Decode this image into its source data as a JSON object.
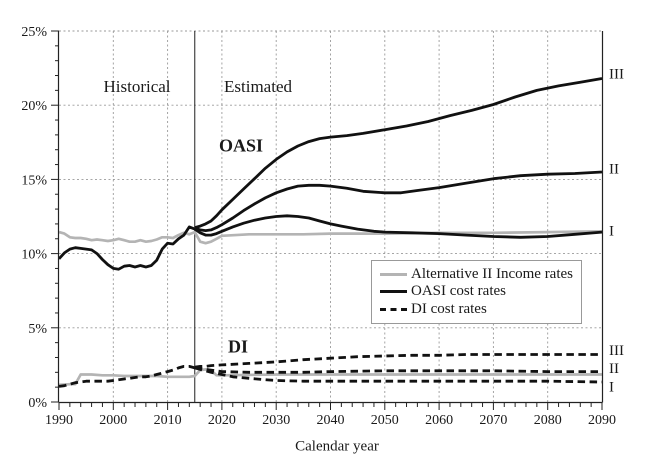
{
  "chart_data": {
    "type": "line",
    "title": "",
    "xlabel": "Calendar year",
    "ylabel": "",
    "xlim": [
      1990,
      2090
    ],
    "ylim": [
      0,
      25
    ],
    "x_major_ticks": [
      1990,
      2000,
      2010,
      2020,
      2030,
      2040,
      2050,
      2060,
      2070,
      2080,
      2090
    ],
    "x_minor_step": 2,
    "y_major_ticks": [
      0,
      5,
      10,
      15,
      20,
      25
    ],
    "y_minor_step": 1,
    "y_tick_suffix": "%",
    "grid": {
      "style": "dashed",
      "color": "#9a9a9a",
      "horizontal_at": [
        5,
        10,
        15,
        20,
        25
      ],
      "vertical_at": [
        2000,
        2010,
        2020,
        2030,
        2040,
        2050,
        2060,
        2070,
        2080
      ]
    },
    "divider": {
      "year": 2015
    },
    "annotations": [
      {
        "text": "Historical"
      },
      {
        "text": "Estimated"
      },
      {
        "text": "OASI"
      },
      {
        "text": "DI"
      }
    ],
    "legend": {
      "position": "lower-right",
      "entries": [
        {
          "label": "Alternative II Income rates",
          "style": "gray-solid"
        },
        {
          "label": "OASI cost rates",
          "style": "black-solid"
        },
        {
          "label": "DI cost rates",
          "style": "black-dashed"
        }
      ]
    },
    "right_labels": [
      {
        "id": "oasi-III",
        "text": "III",
        "value": 22.15
      },
      {
        "id": "oasi-II",
        "text": "II",
        "value": 15.75
      },
      {
        "id": "oasi-I",
        "text": "I",
        "value": 11.55
      },
      {
        "id": "di-III",
        "text": "III",
        "value": 3.5
      },
      {
        "id": "di-II",
        "text": "II",
        "value": 2.3
      },
      {
        "id": "di-I",
        "text": "I",
        "value": 1.05
      }
    ],
    "series": [
      {
        "id": "alt2-income-oasi",
        "name": "Alternative II Income rates (OASI)",
        "color": "#b4b4b4",
        "width": 2.7,
        "dash": null,
        "points": [
          [
            1990,
            11.45
          ],
          [
            1991,
            11.35
          ],
          [
            1992,
            11.1
          ],
          [
            1993,
            11.05
          ],
          [
            1994,
            11.05
          ],
          [
            1995,
            11.0
          ],
          [
            1996,
            10.9
          ],
          [
            1997,
            10.95
          ],
          [
            1998,
            10.9
          ],
          [
            1999,
            10.85
          ],
          [
            2000,
            10.9
          ],
          [
            2001,
            11.0
          ],
          [
            2002,
            10.9
          ],
          [
            2003,
            10.8
          ],
          [
            2004,
            10.8
          ],
          [
            2005,
            10.9
          ],
          [
            2006,
            10.8
          ],
          [
            2007,
            10.85
          ],
          [
            2008,
            10.95
          ],
          [
            2009,
            11.1
          ],
          [
            2010,
            11.1
          ],
          [
            2011,
            11.05
          ],
          [
            2012,
            11.25
          ],
          [
            2013,
            11.4
          ],
          [
            2014,
            11.3
          ],
          [
            2015,
            11.45
          ],
          [
            2016,
            10.8
          ],
          [
            2017,
            10.7
          ],
          [
            2018,
            10.8
          ],
          [
            2019,
            11.0
          ],
          [
            2020,
            11.2
          ],
          [
            2025,
            11.3
          ],
          [
            2030,
            11.3
          ],
          [
            2035,
            11.3
          ],
          [
            2040,
            11.35
          ],
          [
            2050,
            11.35
          ],
          [
            2060,
            11.4
          ],
          [
            2070,
            11.4
          ],
          [
            2080,
            11.45
          ],
          [
            2090,
            11.5
          ]
        ]
      },
      {
        "id": "alt2-income-di",
        "name": "Alternative II Income rates (DI)",
        "color": "#b4b4b4",
        "width": 2.7,
        "dash": null,
        "points": [
          [
            1990,
            1.15
          ],
          [
            1992,
            1.2
          ],
          [
            1993,
            1.2
          ],
          [
            1994,
            1.85
          ],
          [
            1996,
            1.85
          ],
          [
            1998,
            1.8
          ],
          [
            2000,
            1.8
          ],
          [
            2002,
            1.75
          ],
          [
            2004,
            1.75
          ],
          [
            2006,
            1.75
          ],
          [
            2008,
            1.75
          ],
          [
            2010,
            1.7
          ],
          [
            2012,
            1.7
          ],
          [
            2014,
            1.7
          ],
          [
            2015,
            1.75
          ],
          [
            2016,
            2.15
          ],
          [
            2017,
            2.2
          ],
          [
            2018,
            2.15
          ],
          [
            2019,
            1.8
          ],
          [
            2020,
            1.8
          ],
          [
            2030,
            1.85
          ],
          [
            2040,
            1.85
          ],
          [
            2050,
            1.85
          ],
          [
            2060,
            1.85
          ],
          [
            2070,
            1.85
          ],
          [
            2080,
            1.85
          ],
          [
            2090,
            1.85
          ]
        ]
      },
      {
        "id": "oasi-cost-historical",
        "name": "OASI cost rates (historical)",
        "color": "#111111",
        "width": 2.8,
        "dash": null,
        "points": [
          [
            1990,
            9.65
          ],
          [
            1991,
            10.05
          ],
          [
            1992,
            10.3
          ],
          [
            1993,
            10.4
          ],
          [
            1994,
            10.35
          ],
          [
            1995,
            10.3
          ],
          [
            1996,
            10.25
          ],
          [
            1997,
            10.0
          ],
          [
            1998,
            9.6
          ],
          [
            1999,
            9.25
          ],
          [
            2000,
            9.0
          ],
          [
            2001,
            8.95
          ],
          [
            2002,
            9.15
          ],
          [
            2003,
            9.2
          ],
          [
            2004,
            9.1
          ],
          [
            2005,
            9.2
          ],
          [
            2006,
            9.1
          ],
          [
            2007,
            9.2
          ],
          [
            2008,
            9.55
          ],
          [
            2009,
            10.3
          ],
          [
            2010,
            10.7
          ],
          [
            2011,
            10.65
          ],
          [
            2012,
            11.0
          ],
          [
            2013,
            11.25
          ],
          [
            2014,
            11.8
          ],
          [
            2015,
            11.65
          ]
        ]
      },
      {
        "id": "oasi-cost-I",
        "name": "OASI cost rates (alt I)",
        "color": "#111111",
        "width": 2.8,
        "dash": null,
        "points": [
          [
            2015,
            11.65
          ],
          [
            2016,
            11.4
          ],
          [
            2017,
            11.25
          ],
          [
            2018,
            11.25
          ],
          [
            2019,
            11.35
          ],
          [
            2020,
            11.5
          ],
          [
            2022,
            11.8
          ],
          [
            2024,
            12.05
          ],
          [
            2026,
            12.25
          ],
          [
            2028,
            12.4
          ],
          [
            2030,
            12.5
          ],
          [
            2032,
            12.55
          ],
          [
            2034,
            12.5
          ],
          [
            2036,
            12.4
          ],
          [
            2038,
            12.2
          ],
          [
            2040,
            12.0
          ],
          [
            2042,
            11.85
          ],
          [
            2045,
            11.65
          ],
          [
            2048,
            11.5
          ],
          [
            2050,
            11.45
          ],
          [
            2055,
            11.4
          ],
          [
            2060,
            11.35
          ],
          [
            2065,
            11.25
          ],
          [
            2070,
            11.15
          ],
          [
            2075,
            11.1
          ],
          [
            2080,
            11.15
          ],
          [
            2085,
            11.3
          ],
          [
            2090,
            11.45
          ]
        ]
      },
      {
        "id": "oasi-cost-II",
        "name": "OASI cost rates (alt II)",
        "color": "#111111",
        "width": 2.8,
        "dash": null,
        "points": [
          [
            2015,
            11.7
          ],
          [
            2016,
            11.6
          ],
          [
            2017,
            11.55
          ],
          [
            2018,
            11.6
          ],
          [
            2019,
            11.75
          ],
          [
            2020,
            11.95
          ],
          [
            2022,
            12.4
          ],
          [
            2024,
            12.9
          ],
          [
            2026,
            13.35
          ],
          [
            2028,
            13.75
          ],
          [
            2030,
            14.1
          ],
          [
            2032,
            14.35
          ],
          [
            2034,
            14.55
          ],
          [
            2036,
            14.6
          ],
          [
            2038,
            14.6
          ],
          [
            2040,
            14.55
          ],
          [
            2043,
            14.4
          ],
          [
            2046,
            14.2
          ],
          [
            2050,
            14.1
          ],
          [
            2053,
            14.1
          ],
          [
            2056,
            14.25
          ],
          [
            2060,
            14.45
          ],
          [
            2065,
            14.75
          ],
          [
            2070,
            15.05
          ],
          [
            2075,
            15.25
          ],
          [
            2080,
            15.35
          ],
          [
            2085,
            15.4
          ],
          [
            2090,
            15.5
          ]
        ]
      },
      {
        "id": "oasi-cost-III",
        "name": "OASI cost rates (alt III)",
        "color": "#111111",
        "width": 2.8,
        "dash": null,
        "points": [
          [
            2015,
            11.75
          ],
          [
            2016,
            11.85
          ],
          [
            2017,
            12.0
          ],
          [
            2018,
            12.2
          ],
          [
            2019,
            12.55
          ],
          [
            2020,
            12.95
          ],
          [
            2022,
            13.65
          ],
          [
            2024,
            14.35
          ],
          [
            2026,
            15.05
          ],
          [
            2028,
            15.75
          ],
          [
            2030,
            16.35
          ],
          [
            2032,
            16.85
          ],
          [
            2034,
            17.25
          ],
          [
            2036,
            17.55
          ],
          [
            2038,
            17.75
          ],
          [
            2040,
            17.85
          ],
          [
            2043,
            17.95
          ],
          [
            2046,
            18.1
          ],
          [
            2050,
            18.35
          ],
          [
            2054,
            18.6
          ],
          [
            2058,
            18.9
          ],
          [
            2062,
            19.3
          ],
          [
            2066,
            19.65
          ],
          [
            2070,
            20.05
          ],
          [
            2074,
            20.55
          ],
          [
            2078,
            21.0
          ],
          [
            2082,
            21.3
          ],
          [
            2086,
            21.55
          ],
          [
            2090,
            21.8
          ]
        ]
      },
      {
        "id": "di-cost-historical",
        "name": "DI cost rates (historical)",
        "color": "#111111",
        "width": 2.8,
        "dash": "7.5 4.5",
        "points": [
          [
            1990,
            1.05
          ],
          [
            1991,
            1.1
          ],
          [
            1992,
            1.2
          ],
          [
            1993,
            1.3
          ],
          [
            1994,
            1.35
          ],
          [
            1995,
            1.4
          ],
          [
            1996,
            1.4
          ],
          [
            1997,
            1.4
          ],
          [
            1998,
            1.4
          ],
          [
            1999,
            1.4
          ],
          [
            2000,
            1.45
          ],
          [
            2001,
            1.5
          ],
          [
            2002,
            1.55
          ],
          [
            2003,
            1.6
          ],
          [
            2004,
            1.65
          ],
          [
            2005,
            1.7
          ],
          [
            2006,
            1.7
          ],
          [
            2007,
            1.75
          ],
          [
            2008,
            1.85
          ],
          [
            2009,
            1.95
          ],
          [
            2010,
            2.05
          ],
          [
            2011,
            2.15
          ],
          [
            2012,
            2.3
          ],
          [
            2013,
            2.4
          ],
          [
            2014,
            2.4
          ],
          [
            2015,
            2.3
          ]
        ]
      },
      {
        "id": "di-cost-I",
        "name": "DI cost rates (alt I)",
        "color": "#111111",
        "width": 2.8,
        "dash": "7.5 4.5",
        "points": [
          [
            2015,
            2.3
          ],
          [
            2016,
            2.2
          ],
          [
            2017,
            2.1
          ],
          [
            2018,
            2.0
          ],
          [
            2020,
            1.85
          ],
          [
            2022,
            1.7
          ],
          [
            2025,
            1.6
          ],
          [
            2028,
            1.5
          ],
          [
            2030,
            1.45
          ],
          [
            2035,
            1.4
          ],
          [
            2040,
            1.4
          ],
          [
            2050,
            1.4
          ],
          [
            2060,
            1.4
          ],
          [
            2070,
            1.4
          ],
          [
            2080,
            1.4
          ],
          [
            2090,
            1.35
          ]
        ]
      },
      {
        "id": "di-cost-II",
        "name": "DI cost rates (alt II)",
        "color": "#111111",
        "width": 2.8,
        "dash": "7.5 4.5",
        "points": [
          [
            2015,
            2.3
          ],
          [
            2016,
            2.25
          ],
          [
            2017,
            2.2
          ],
          [
            2018,
            2.15
          ],
          [
            2020,
            2.05
          ],
          [
            2025,
            2.0
          ],
          [
            2030,
            2.0
          ],
          [
            2035,
            2.0
          ],
          [
            2040,
            2.05
          ],
          [
            2050,
            2.1
          ],
          [
            2060,
            2.1
          ],
          [
            2070,
            2.1
          ],
          [
            2080,
            2.05
          ],
          [
            2090,
            2.05
          ]
        ]
      },
      {
        "id": "di-cost-III",
        "name": "DI cost rates (alt III)",
        "color": "#111111",
        "width": 2.8,
        "dash": "7.5 4.5",
        "points": [
          [
            2015,
            2.35
          ],
          [
            2016,
            2.4
          ],
          [
            2017,
            2.4
          ],
          [
            2018,
            2.45
          ],
          [
            2020,
            2.5
          ],
          [
            2025,
            2.6
          ],
          [
            2030,
            2.7
          ],
          [
            2035,
            2.85
          ],
          [
            2040,
            2.95
          ],
          [
            2045,
            3.05
          ],
          [
            2050,
            3.1
          ],
          [
            2055,
            3.15
          ],
          [
            2060,
            3.15
          ],
          [
            2065,
            3.2
          ],
          [
            2070,
            3.2
          ],
          [
            2080,
            3.2
          ],
          [
            2090,
            3.2
          ]
        ]
      }
    ]
  }
}
